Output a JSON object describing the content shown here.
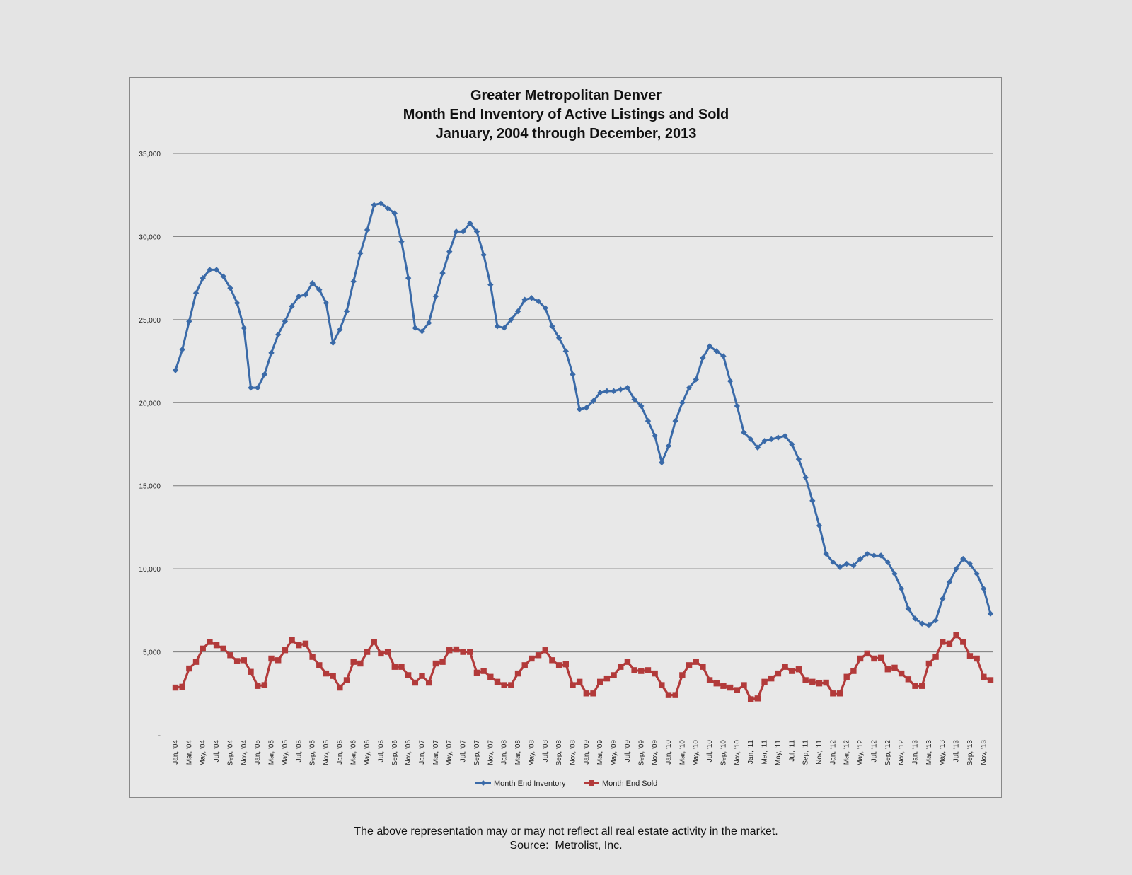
{
  "footer": {
    "disclaimer": "The above representation may or may not reflect all real estate activity in the market.",
    "source": "Source:  Metrolist, Inc."
  },
  "colors": {
    "inventory": "#3a6aa8",
    "sold": "#b23a3a",
    "grid": "#7a7a7a"
  },
  "chart_data": {
    "type": "line",
    "title": [
      "Greater Metropolitan Denver",
      "Month End Inventory of Active Listings and Sold",
      "January, 2004 through December, 2013"
    ],
    "ylim": [
      0,
      35000
    ],
    "yticks": [
      0,
      5000,
      10000,
      15000,
      20000,
      25000,
      30000,
      35000
    ],
    "ytick_labels": [
      "-",
      "5,000",
      "10,000",
      "15,000",
      "20,000",
      "25,000",
      "30,000",
      "35,000"
    ],
    "grid": true,
    "legend_position": "bottom",
    "x_tick_labels": [
      "Jan, '04",
      "Mar, '04",
      "May, '04",
      "Jul, '04",
      "Sep, '04",
      "Nov, '04",
      "Jan, '05",
      "Mar, '05",
      "May, '05",
      "Jul, '05",
      "Sep, '05",
      "Nov, '05",
      "Jan, '06",
      "Mar, '06",
      "May, '06",
      "Jul, '06",
      "Sep, '06",
      "Nov, '06",
      "Jan, '07",
      "Mar, '07",
      "May, '07",
      "Jul, '07",
      "Sep, '07",
      "Nov, '07",
      "Jan, '08",
      "Mar, '08",
      "May, '08",
      "Jul, '08",
      "Sep, '08",
      "Nov, '08",
      "Jan, '09",
      "Mar, '09",
      "May, '09",
      "Jul, '09",
      "Sep, '09",
      "Nov, '09",
      "Jan, '10",
      "Mar, '10",
      "May, '10",
      "Jul, '10",
      "Sep, '10",
      "Nov, '10",
      "Jan, '11",
      "Mar, '11",
      "May, '11",
      "Jul, '11",
      "Sep, '11",
      "Nov, '11",
      "Jan, '12",
      "Mar, '12",
      "May, '12",
      "Jul, '12",
      "Sep, '12",
      "Nov, '12",
      "Jan, '13",
      "Mar, '13",
      "May, '13",
      "Jul, '13",
      "Sep, '13",
      "Nov, '13"
    ],
    "series": [
      {
        "name": "Month End Inventory",
        "marker": "diamond",
        "values": [
          21950,
          23200,
          24900,
          26600,
          27500,
          28000,
          28000,
          27600,
          26900,
          26000,
          24500,
          20900,
          20900,
          21700,
          23000,
          24100,
          24900,
          25800,
          26400,
          26500,
          27200,
          26800,
          26000,
          23600,
          24400,
          25500,
          27300,
          29000,
          30400,
          31900,
          32000,
          31700,
          31400,
          29700,
          27500,
          24500,
          24300,
          24800,
          26400,
          27800,
          29100,
          30300,
          30300,
          30800,
          30300,
          28900,
          27100,
          24600,
          24500,
          25000,
          25500,
          26200,
          26300,
          26100,
          25700,
          24600,
          23900,
          23100,
          21700,
          19600,
          19700,
          20100,
          20600,
          20700,
          20700,
          20800,
          20900,
          20200,
          19800,
          18900,
          18000,
          16400,
          17400,
          18900,
          20000,
          20900,
          21400,
          22700,
          23400,
          23100,
          22800,
          21300,
          19800,
          18200,
          17800,
          17300,
          17700,
          17800,
          17900,
          18000,
          17500,
          16600,
          15500,
          14100,
          12600,
          10900,
          10400,
          10100,
          10300,
          10200,
          10600,
          10900,
          10800,
          10800,
          10400,
          9700,
          8800,
          7600,
          7000,
          6700,
          6600,
          6900,
          8200,
          9200,
          10000,
          10600,
          10300,
          9700,
          8800,
          7300
        ]
      },
      {
        "name": "Month End Sold",
        "marker": "square",
        "values": [
          2850,
          2900,
          4000,
          4400,
          5200,
          5600,
          5400,
          5200,
          4800,
          4450,
          4500,
          3800,
          2950,
          3000,
          4600,
          4500,
          5100,
          5700,
          5400,
          5500,
          4700,
          4200,
          3700,
          3550,
          2850,
          3300,
          4400,
          4300,
          5000,
          5600,
          4900,
          5000,
          4100,
          4100,
          3600,
          3150,
          3550,
          3150,
          4300,
          4400,
          5100,
          5150,
          5000,
          5000,
          3750,
          3850,
          3500,
          3200,
          3000,
          3000,
          3700,
          4200,
          4600,
          4800,
          5100,
          4500,
          4200,
          4250,
          3000,
          3200,
          2500,
          2500,
          3200,
          3400,
          3600,
          4100,
          4400,
          3900,
          3850,
          3900,
          3700,
          3000,
          2400,
          2400,
          3600,
          4200,
          4400,
          4100,
          3300,
          3100,
          2950,
          2850,
          2700,
          3000,
          2150,
          2200,
          3200,
          3400,
          3700,
          4100,
          3850,
          3950,
          3300,
          3200,
          3100,
          3150,
          2500,
          2500,
          3500,
          3850,
          4600,
          4900,
          4600,
          4650,
          3950,
          4050,
          3700,
          3350,
          2950,
          2950,
          4300,
          4700,
          5600,
          5500,
          6000,
          5600,
          4750,
          4600,
          3500,
          3300
        ]
      }
    ]
  }
}
